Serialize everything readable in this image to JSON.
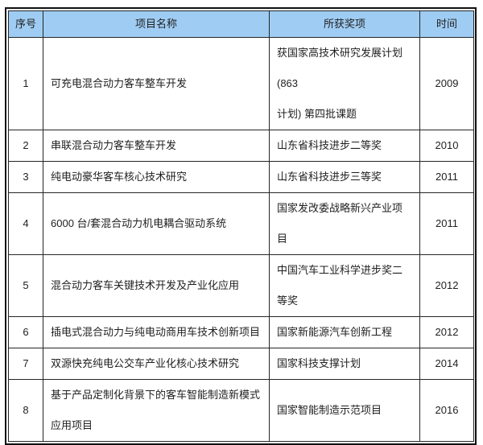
{
  "table": {
    "columns": [
      {
        "key": "index",
        "label": "序号"
      },
      {
        "key": "name",
        "label": "项目名称"
      },
      {
        "key": "award",
        "label": "所获奖项"
      },
      {
        "key": "year",
        "label": "时间"
      }
    ],
    "rows": [
      {
        "index": "1",
        "name": "可充电混合动力客车整车开发",
        "award": "获国家高技术研究发展计划(863\n计划) 第四批课题",
        "year": "2009"
      },
      {
        "index": "2",
        "name": "串联混合动力客车整车开发",
        "award": "山东省科技进步二等奖",
        "year": "2010"
      },
      {
        "index": "3",
        "name": "纯电动豪华客车核心技术研究",
        "award": "山东省科技进步三等奖",
        "year": "2011"
      },
      {
        "index": "4",
        "name": "6000 台/套混合动力机电耦合驱动系统",
        "award": "国家发改委战略新兴产业项目",
        "year": "2011"
      },
      {
        "index": "5",
        "name": "混合动力客车关键技术开发及产业化应用",
        "award": "中国汽车工业科学进步奖二等奖",
        "year": "2012"
      },
      {
        "index": "6",
        "name": "插电式混合动力与纯电动商用车技术创新项目",
        "award": "国家新能源汽车创新工程",
        "year": "2012"
      },
      {
        "index": "7",
        "name": "双源快充纯电公交车产业化核心技术研究",
        "award": "国家科技支撑计划",
        "year": "2014"
      },
      {
        "index": "8",
        "name": "基于产品定制化背景下的客车智能制造新模式\n应用项目",
        "award": "国家智能制造示范项目",
        "year": "2016"
      }
    ]
  },
  "colors": {
    "header_bg": "#9fccf3",
    "border": "#262626",
    "outer_border": "#111111",
    "text": "#1f1f1f",
    "bg": "#ffffff"
  }
}
